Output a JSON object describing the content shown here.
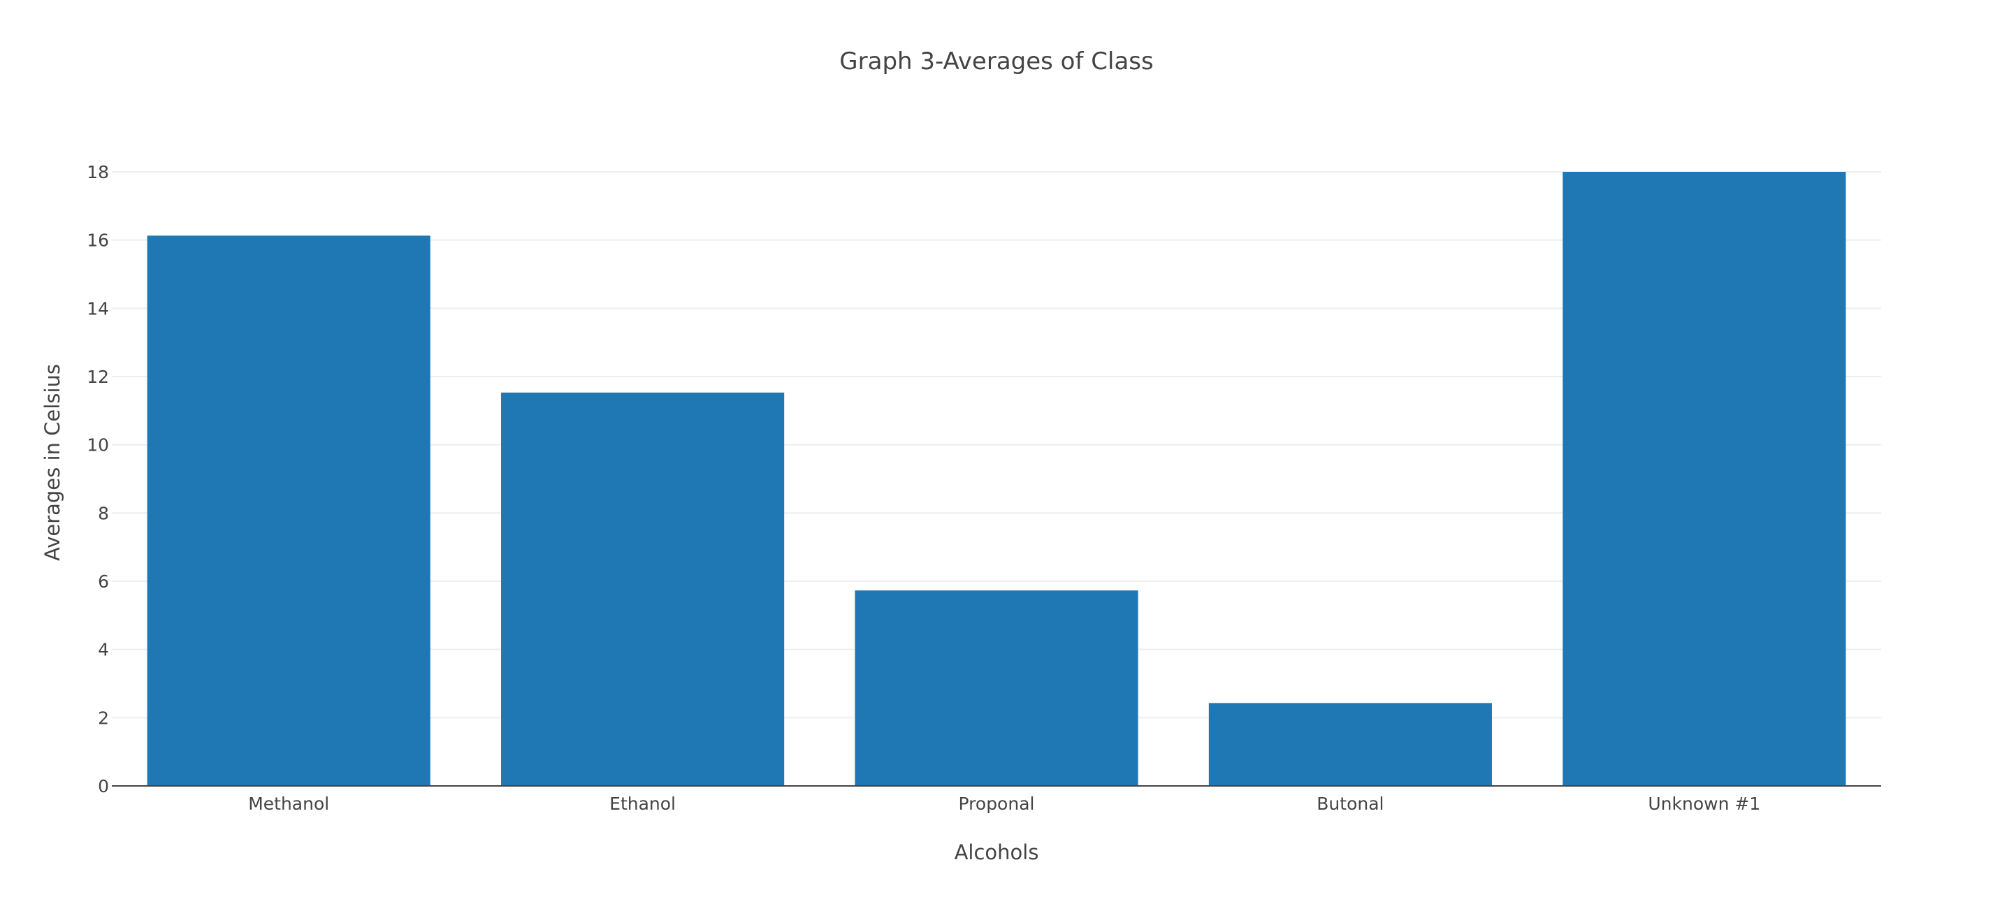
{
  "chart_data": {
    "type": "bar",
    "title": "Graph 3-Averages of Class",
    "xlabel": "Alcohols",
    "ylabel": "Averages in Celsius",
    "categories": [
      "Methanol",
      "Ethanol",
      "Proponal",
      "Butonal",
      "Unknown #1"
    ],
    "values": [
      16.13,
      11.53,
      5.73,
      2.43,
      18
    ],
    "ylim": [
      0,
      18
    ],
    "yticks": [
      "0",
      "2",
      "4",
      "6",
      "8",
      "10",
      "12",
      "14",
      "16",
      "18"
    ],
    "grid": true,
    "bar_color": "#1f77b4"
  }
}
